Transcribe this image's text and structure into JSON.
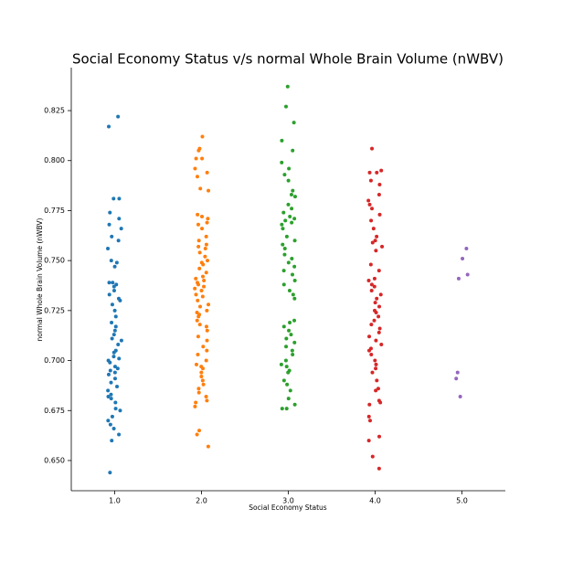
{
  "chart_data": {
    "type": "strip",
    "title": "Social Economy Status v/s normal Whole Brain Volume (nWBV)",
    "x_label": "Social Economy Status",
    "y_label": "normal Whole Brain Volume (nWBV)",
    "categories": [
      "1.0",
      "2.0",
      "3.0",
      "4.0",
      "5.0"
    ],
    "colors": [
      "#1f77b4",
      "#ff7f0e",
      "#2ca02c",
      "#d62728",
      "#9467bd"
    ],
    "values": [
      [
        0.822,
        0.817,
        0.781,
        0.781,
        0.774,
        0.771,
        0.768,
        0.766,
        0.762,
        0.76,
        0.756,
        0.75,
        0.749,
        0.747,
        0.739,
        0.739,
        0.738,
        0.737,
        0.735,
        0.733,
        0.731,
        0.73,
        0.728,
        0.725,
        0.722,
        0.719,
        0.717,
        0.715,
        0.713,
        0.711,
        0.71,
        0.708,
        0.705,
        0.704,
        0.702,
        0.701,
        0.7,
        0.699,
        0.697,
        0.696,
        0.695,
        0.694,
        0.693,
        0.691,
        0.689,
        0.687,
        0.685,
        0.683,
        0.682,
        0.681,
        0.679,
        0.676,
        0.675,
        0.672,
        0.67,
        0.668,
        0.666,
        0.663,
        0.66,
        0.644
      ],
      [
        0.812,
        0.806,
        0.805,
        0.801,
        0.801,
        0.796,
        0.794,
        0.792,
        0.786,
        0.785,
        0.773,
        0.772,
        0.771,
        0.769,
        0.768,
        0.766,
        0.762,
        0.76,
        0.758,
        0.757,
        0.756,
        0.754,
        0.752,
        0.75,
        0.749,
        0.748,
        0.746,
        0.744,
        0.742,
        0.741,
        0.74,
        0.739,
        0.738,
        0.737,
        0.736,
        0.735,
        0.733,
        0.732,
        0.73,
        0.728,
        0.727,
        0.725,
        0.724,
        0.723,
        0.722,
        0.72,
        0.718,
        0.717,
        0.715,
        0.712,
        0.71,
        0.707,
        0.705,
        0.703,
        0.7,
        0.698,
        0.697,
        0.696,
        0.694,
        0.692,
        0.69,
        0.688,
        0.686,
        0.684,
        0.682,
        0.68,
        0.679,
        0.677,
        0.665,
        0.663,
        0.657
      ],
      [
        0.837,
        0.827,
        0.819,
        0.81,
        0.805,
        0.799,
        0.796,
        0.793,
        0.79,
        0.785,
        0.783,
        0.782,
        0.778,
        0.776,
        0.774,
        0.772,
        0.771,
        0.77,
        0.769,
        0.768,
        0.766,
        0.762,
        0.76,
        0.758,
        0.756,
        0.753,
        0.751,
        0.749,
        0.747,
        0.745,
        0.743,
        0.74,
        0.738,
        0.735,
        0.733,
        0.731,
        0.72,
        0.719,
        0.717,
        0.715,
        0.713,
        0.711,
        0.709,
        0.707,
        0.705,
        0.703,
        0.7,
        0.698,
        0.697,
        0.695,
        0.694,
        0.69,
        0.688,
        0.685,
        0.681,
        0.678,
        0.676,
        0.676
      ],
      [
        0.806,
        0.795,
        0.794,
        0.794,
        0.79,
        0.788,
        0.783,
        0.78,
        0.778,
        0.776,
        0.773,
        0.77,
        0.766,
        0.762,
        0.76,
        0.759,
        0.757,
        0.755,
        0.748,
        0.745,
        0.741,
        0.74,
        0.738,
        0.737,
        0.735,
        0.733,
        0.731,
        0.729,
        0.727,
        0.725,
        0.724,
        0.722,
        0.72,
        0.718,
        0.716,
        0.714,
        0.712,
        0.71,
        0.708,
        0.706,
        0.705,
        0.703,
        0.7,
        0.698,
        0.696,
        0.694,
        0.69,
        0.686,
        0.685,
        0.68,
        0.679,
        0.678,
        0.672,
        0.67,
        0.662,
        0.66,
        0.652,
        0.646
      ],
      [
        0.756,
        0.751,
        0.743,
        0.741,
        0.694,
        0.691,
        0.682
      ]
    ],
    "ylim": [
      0.6349,
      0.8465
    ],
    "yticks": [
      {
        "value": 0.65,
        "label": "0.650"
      },
      0.675,
      {
        "value": 0.7,
        "label": "0.700"
      },
      0.725,
      {
        "value": 0.75,
        "label": "0.750"
      },
      0.775,
      {
        "value": 0.8,
        "label": "0.800"
      },
      0.825
    ]
  }
}
